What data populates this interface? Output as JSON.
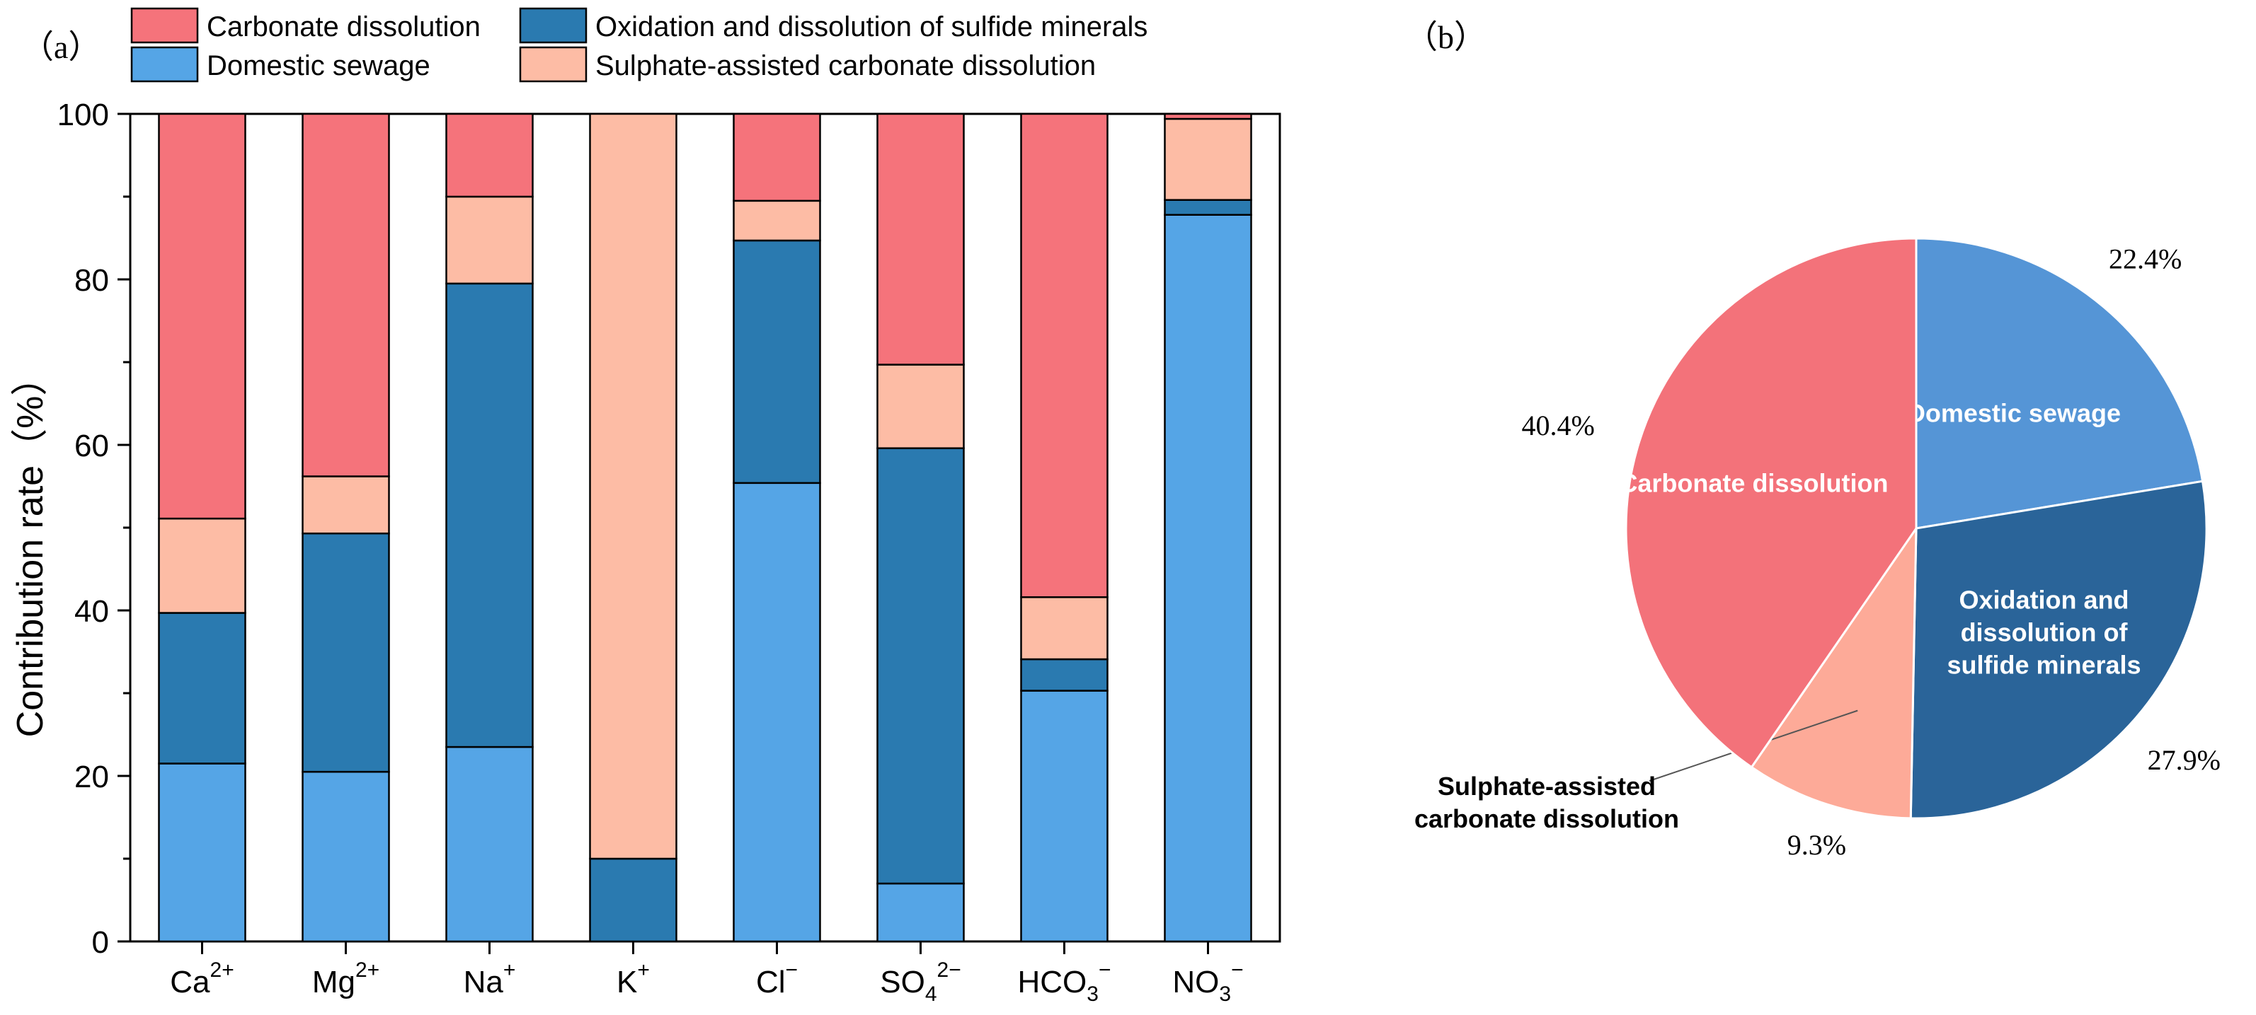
{
  "chart_data": [
    {
      "type": "bar",
      "stacked": true,
      "panel_label": "（a）",
      "title": "",
      "xlabel": "",
      "ylabel": "Contribution rate（%）",
      "ylim": [
        0,
        100
      ],
      "yticks": [
        "0",
        "20",
        "40",
        "60",
        "80",
        "100"
      ],
      "legend_placement": "top",
      "categories": [
        {
          "base": "Ca",
          "sub": "",
          "sup": "2+"
        },
        {
          "base": "Mg",
          "sub": "",
          "sup": "2+"
        },
        {
          "base": "Na",
          "sub": "",
          "sup": "+"
        },
        {
          "base": "K",
          "sub": "",
          "sup": "+"
        },
        {
          "base": "Cl",
          "sub": "",
          "sup": "−"
        },
        {
          "base": "SO",
          "sub": "4",
          "sup": "2−"
        },
        {
          "base": "HCO",
          "sub": "3",
          "sup": "−"
        },
        {
          "base": "NO",
          "sub": "3",
          "sup": "−"
        }
      ],
      "series": [
        {
          "name": "Domestic sewage",
          "color": "#55a5e6",
          "values": [
            21.5,
            20.5,
            23.5,
            0,
            55.4,
            7.0,
            30.3,
            87.8
          ]
        },
        {
          "name": "Oxidation and dissolution of sulfide minerals",
          "color": "#2a7ab0",
          "values": [
            18.2,
            28.8,
            56.0,
            10.0,
            29.3,
            52.6,
            3.8,
            1.8
          ]
        },
        {
          "name": "Sulphate-assisted carbonate dissolution",
          "color": "#fdbca5",
          "values": [
            11.4,
            6.9,
            10.5,
            90.0,
            4.8,
            10.1,
            7.5,
            9.8
          ]
        },
        {
          "name": "Carbonate dissolution",
          "color": "#f5737b",
          "values": [
            48.9,
            43.8,
            10.0,
            0,
            10.5,
            30.3,
            58.4,
            0.6
          ]
        }
      ],
      "legend_order": [
        "Carbonate dissolution",
        "Oxidation and dissolution of sulfide minerals",
        "Domestic sewage",
        "Sulphate-assisted carbonate dissolution"
      ]
    },
    {
      "type": "pie",
      "panel_label": "（b）",
      "title": "",
      "slices": [
        {
          "name": "Domestic sewage",
          "label_lines": [
            "Domestic sewage"
          ],
          "value": 22.4,
          "pct_label": "22.4%",
          "color": "#5595d6",
          "label_color": "#ffffff"
        },
        {
          "name": "Oxidation and dissolution of sulfide minerals",
          "label_lines": [
            "Oxidation and",
            "dissolution of",
            "sulfide minerals"
          ],
          "value": 27.9,
          "pct_label": "27.9%",
          "color": "#2a6499",
          "label_color": "#ffffff"
        },
        {
          "name": "Sulphate-assisted carbonate dissolution",
          "label_lines": [
            "Sulphate-assisted",
            "carbonate dissolution"
          ],
          "value": 9.3,
          "pct_label": "9.3%",
          "color": "#fdaa98",
          "label_color": "#000000"
        },
        {
          "name": "Carbonate dissolution",
          "label_lines": [
            "Carbonate dissolution"
          ],
          "value": 40.4,
          "pct_label": "40.4%",
          "color": "#f3727a",
          "label_color": "#ffffff"
        }
      ]
    }
  ]
}
